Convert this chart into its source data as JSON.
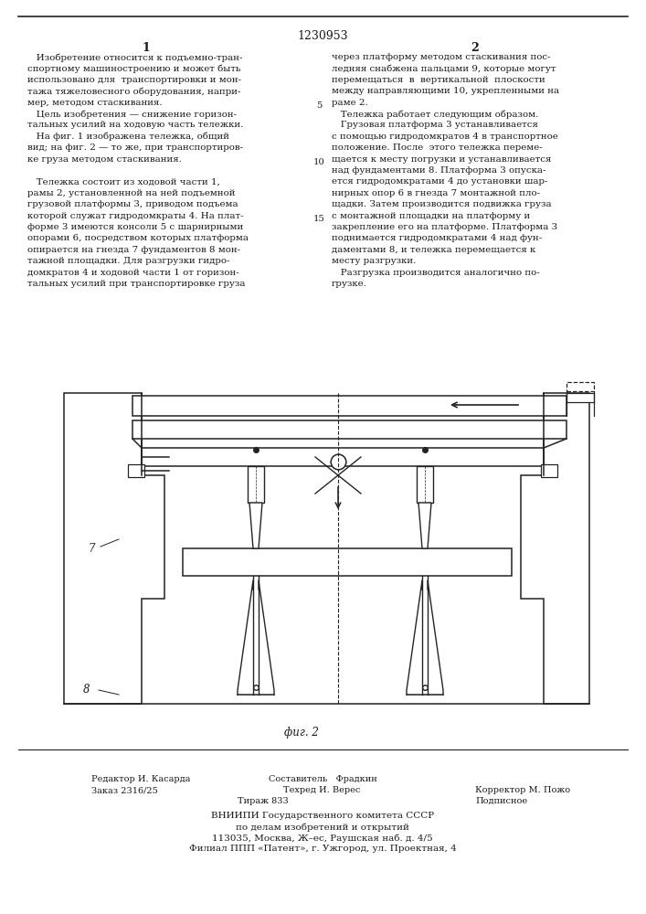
{
  "patent_number": "1230953",
  "col1_label": "1",
  "col2_label": "2",
  "line_number_5": "5",
  "line_number_10": "10",
  "line_number_15": "15",
  "fig_label": "фиг. 2",
  "label_7": "7",
  "label_8": "8",
  "col1_text": [
    "   Изобретение относится к подъемно-тран-",
    "спортному машиностроению и может быть",
    "использовано для  транспортировки и мон-",
    "тажа тяжеловесного оборудования, напри-",
    "мер, методом стаскивания.",
    "   Цель изобретения — снижение горизон-",
    "тальных усилий на ходовую часть тележки.",
    "   На фиг. 1 изображена тележка, общий",
    "вид; на фиг. 2 — то же, при транспортиров-",
    "ке груза методом стаскивания.",
    "",
    "   Тележка состоит из ходовой части 1,",
    "рамы 2, установленной на ней подъемной",
    "грузовой платформы 3, приводом подъема",
    "которой служат гидродомкраты 4. На плат-",
    "форме 3 имеются консоли 5 с шарнирными",
    "опорами 6, посредством которых платформа",
    "опирается на гнезда 7 фундаментов 8 мон-",
    "тажной площадки. Для разгрузки гидро-",
    "домкратов 4 и ходовой части 1 от горизон-",
    "тальных усилий при транспортировке груза"
  ],
  "col2_text": [
    "через платформу методом стаскивания пос-",
    "ледняя снабжена пальцами 9, которые могут",
    "перемещаться  в  вертикальной  плоскости",
    "между направляющими 10, укрепленными на",
    "раме 2.",
    "   Тележка работает следующим образом.",
    "   Грузовая платформа 3 устанавливается",
    "с помощью гидродомкратов 4 в транспортное",
    "положение. После  этого тележка переме-",
    "щается к месту погрузки и устанавливается",
    "над фундаментами 8. Платформа 3 опуска-",
    "ется гидродомкратами 4 до установки шар-",
    "нирных опор 6 в гнезда 7 монтажной пло-",
    "щадки. Затем производится подвижка груза",
    "с монтажной площадки на платформу и",
    "закрепление его на платформе. Платформа 3",
    "поднимается гидродомкратами 4 над фун-",
    "даментами 8, и тележка перемещается к",
    "месту разгрузки.",
    "   Разгрузка производится аналогично по-",
    "грузке."
  ],
  "footer_col1": [
    "Редактор И. Касарда",
    "Заказ 2316/25"
  ],
  "footer_col2": [
    "Составитель   Фрадкин",
    "Техред И. Верес"
  ],
  "footer_col3": [
    "",
    "Корректор М. Пожо"
  ],
  "footer_tiraж": "Тираж 833",
  "footer_podpisnoe": "Подписное",
  "footer_vniipи": "ВНИИПИ Государственного комитета СССР",
  "footer_line2": "по делам изобретений и открытий",
  "footer_line3": "113035, Москва, Ж–ес, Раушская наб. д. 4/5",
  "footer_line4": "Филиал ППП «Патент», г. Ужгород, ул. Проектная, 4",
  "background_color": "#ffffff",
  "text_color": "#1a1a1a",
  "border_color": "#222222"
}
